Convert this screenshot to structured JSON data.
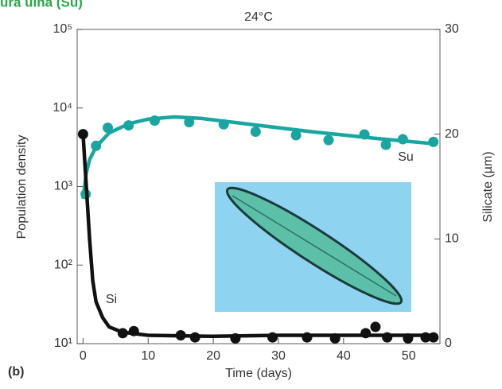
{
  "chart_data": {
    "type": "scatter",
    "heading": "ura ulna (Su)",
    "title": "24°C",
    "panel_label": "(b)",
    "x_label": "Time (days)",
    "y_label": "Population density",
    "y2_label": "Silicate (µm)",
    "xlim": [
      -0.9,
      54.8
    ],
    "xticks": [
      0,
      10,
      20,
      30,
      40,
      50
    ],
    "ylim": [
      10,
      100000
    ],
    "y_scale": "log",
    "yticks": [
      {
        "value": 10,
        "label": "10¹"
      },
      {
        "value": 100,
        "label": "10²"
      },
      {
        "value": 1000,
        "label": "10³"
      },
      {
        "value": 10000,
        "label": "10⁴"
      },
      {
        "value": 100000,
        "label": "10⁵"
      }
    ],
    "y2lim": [
      0,
      30
    ],
    "y2ticks": [
      0,
      10,
      20,
      30
    ],
    "series": [
      {
        "name": "Su",
        "color": "#1aa6a0",
        "axis": "y",
        "x": [
          0.4,
          2,
          3.8,
          7,
          11,
          16.3,
          21.6,
          26.5,
          32.7,
          37.7,
          43.2,
          46.5,
          49.1,
          53.8
        ],
        "values": [
          800,
          3300,
          5600,
          6000,
          6900,
          6600,
          6200,
          5000,
          4500,
          3900,
          4600,
          3400,
          4000,
          3700
        ],
        "curve": {
          "x": [
            0,
            0.5,
            1,
            2,
            4,
            7,
            10,
            14,
            18,
            25,
            35,
            45,
            54
          ],
          "values": [
            700,
            1500,
            2200,
            3200,
            4800,
            6300,
            7200,
            7700,
            7400,
            6300,
            5000,
            4100,
            3500
          ]
        }
      },
      {
        "name": "Si",
        "color": "#111111",
        "axis": "y2",
        "x": [
          0,
          6.1,
          7.8,
          15,
          17.2,
          23.4,
          29.1,
          34.4,
          38.7,
          43.4,
          44.9,
          46.7,
          49.9,
          52.6,
          53.8
        ],
        "values": [
          20,
          1,
          1.2,
          0.8,
          0.6,
          0.5,
          0.6,
          0.6,
          0.5,
          1,
          1.6,
          0.6,
          0.5,
          0.6,
          0.6
        ],
        "curve": {
          "x": [
            0,
            0.5,
            1,
            1.5,
            2,
            3,
            4,
            6,
            10,
            20,
            30,
            40,
            50,
            54
          ],
          "values": [
            20,
            15,
            10,
            6,
            4,
            2.5,
            1.6,
            1.1,
            0.8,
            0.7,
            0.8,
            0.8,
            0.8,
            0.8
          ]
        }
      }
    ]
  }
}
